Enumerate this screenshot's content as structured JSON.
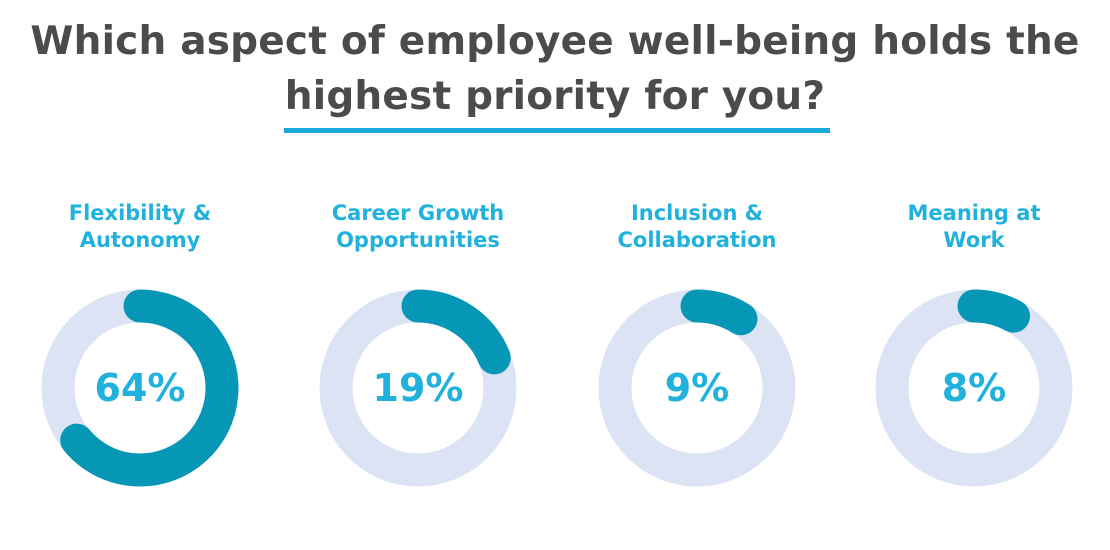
{
  "title": {
    "line1": "Which aspect of employee well-being holds the",
    "line2": "highest priority for you?"
  },
  "colors": {
    "title": "#4b4b4b",
    "underline": "#1ba9dc",
    "label": "#20b2dd",
    "arc": "#0797b6",
    "track": "#dbe3f5"
  },
  "chart_data": {
    "type": "pie",
    "variant": "donut",
    "categories": [
      [
        "Flexibility &",
        "Autonomy"
      ],
      [
        "Career Growth",
        "Opportunities"
      ],
      [
        "Inclusion &",
        "Collaboration"
      ],
      [
        "Meaning at",
        "Work"
      ]
    ],
    "values": [
      64,
      19,
      9,
      8
    ],
    "value_labels": [
      "64%",
      "19%",
      "9%",
      "8%"
    ],
    "unit": "%"
  }
}
